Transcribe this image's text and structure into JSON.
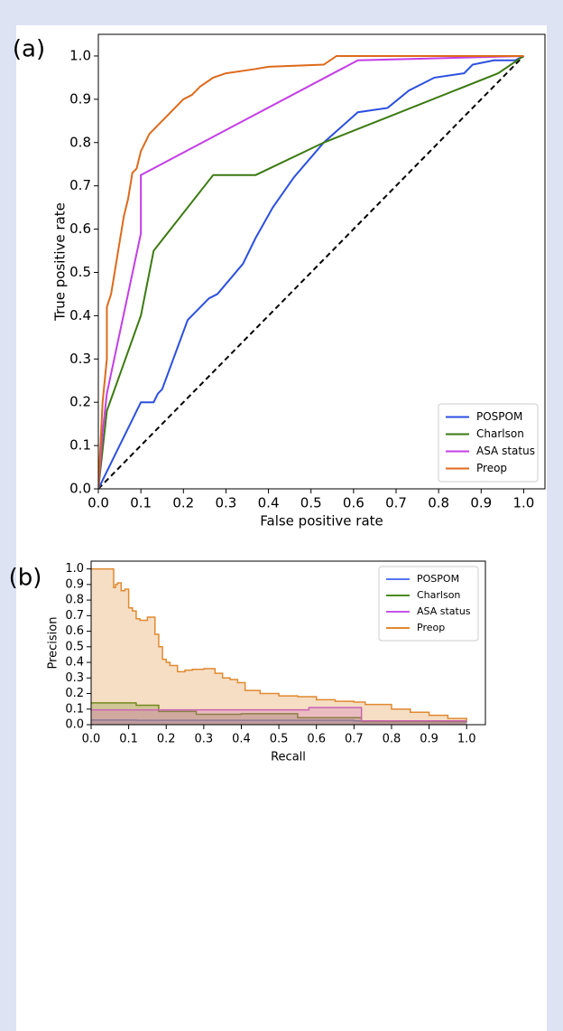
{
  "chart_data": [
    {
      "type": "line",
      "panel_label": "(a)",
      "x_label": "False positive rate",
      "y_label": "True positive rate",
      "xlim": [
        0,
        1.05
      ],
      "ylim": [
        0,
        1.05
      ],
      "xticks": [
        {
          "value": 0,
          "label": "0.0"
        },
        {
          "value": 0.1,
          "label": "0.1"
        },
        {
          "value": 0.2,
          "label": "0.2"
        },
        {
          "value": 0.3,
          "label": "0.3"
        },
        {
          "value": 0.4,
          "label": "0.4"
        },
        {
          "value": 0.5,
          "label": "0.5"
        },
        {
          "value": 0.6,
          "label": "0.6"
        },
        {
          "value": 0.7,
          "label": "0.7"
        },
        {
          "value": 0.8,
          "label": "0.8"
        },
        {
          "value": 0.9,
          "label": "0.9"
        },
        {
          "value": 1,
          "label": "1.0"
        }
      ],
      "yticks": [
        {
          "value": 0,
          "label": "0.0"
        },
        {
          "value": 0.1,
          "label": "0.1"
        },
        {
          "value": 0.2,
          "label": "0.2"
        },
        {
          "value": 0.3,
          "label": "0.3"
        },
        {
          "value": 0.4,
          "label": "0.4"
        },
        {
          "value": 0.5,
          "label": "0.5"
        },
        {
          "value": 0.6,
          "label": "0.6"
        },
        {
          "value": 0.7,
          "label": "0.7"
        },
        {
          "value": 0.8,
          "label": "0.8"
        },
        {
          "value": 0.9,
          "label": "0.9"
        },
        {
          "value": 1,
          "label": "1.0"
        }
      ],
      "legend": "lower right",
      "diagonal": {
        "x": [
          0,
          1
        ],
        "values": [
          0,
          1
        ],
        "color": "#000000",
        "style": "dashed"
      },
      "series": [
        {
          "name": "POSPOM",
          "color": "#2b4fe0",
          "x": [
            0,
            0.1,
            0.13,
            0.14,
            0.15,
            0.21,
            0.26,
            0.28,
            0.34,
            0.37,
            0.41,
            0.46,
            0.53,
            0.61,
            0.68,
            0.73,
            0.79,
            0.86,
            0.88,
            0.93,
            0.98,
            1
          ],
          "values": [
            0,
            0.2,
            0.2,
            0.22,
            0.23,
            0.39,
            0.44,
            0.45,
            0.52,
            0.58,
            0.65,
            0.72,
            0.8,
            0.87,
            0.88,
            0.92,
            0.95,
            0.96,
            0.98,
            0.99,
            0.99,
            1
          ]
        },
        {
          "name": "Charlson",
          "color": "#3c7a12",
          "x": [
            0,
            0.02,
            0.1,
            0.13,
            0.27,
            0.37,
            0.53,
            0.94,
            1
          ],
          "values": [
            0,
            0.18,
            0.4,
            0.55,
            0.725,
            0.725,
            0.8,
            0.96,
            1
          ]
        },
        {
          "name": "ASA status",
          "color": "#c43ee6",
          "x": [
            0,
            0.01,
            0.02,
            0.1,
            0.1,
            0.61,
            1
          ],
          "values": [
            0,
            0.13,
            0.22,
            0.59,
            0.725,
            0.99,
            1
          ]
        },
        {
          "name": "Preop",
          "color": "#dd6a1c",
          "x": [
            0,
            0.01,
            0.02,
            0.02,
            0.03,
            0.04,
            0.05,
            0.06,
            0.07,
            0.08,
            0.09,
            0.1,
            0.12,
            0.14,
            0.16,
            0.18,
            0.2,
            0.22,
            0.24,
            0.27,
            0.3,
            0.37,
            0.4,
            0.53,
            0.56,
            1
          ],
          "values": [
            0,
            0.2,
            0.3,
            0.42,
            0.45,
            0.51,
            0.57,
            0.63,
            0.67,
            0.73,
            0.74,
            0.78,
            0.82,
            0.84,
            0.86,
            0.88,
            0.9,
            0.91,
            0.93,
            0.95,
            0.96,
            0.97,
            0.975,
            0.98,
            1,
            1
          ]
        }
      ]
    },
    {
      "type": "step",
      "panel_label": "(b)",
      "x_label": "Recall",
      "y_label": "Precision",
      "xlim": [
        0,
        1.05
      ],
      "ylim": [
        0,
        1.05
      ],
      "xticks": [
        {
          "value": 0,
          "label": "0.0"
        },
        {
          "value": 0.1,
          "label": "0.1"
        },
        {
          "value": 0.2,
          "label": "0.2"
        },
        {
          "value": 0.3,
          "label": "0.3"
        },
        {
          "value": 0.4,
          "label": "0.4"
        },
        {
          "value": 0.5,
          "label": "0.5"
        },
        {
          "value": 0.6,
          "label": "0.6"
        },
        {
          "value": 0.7,
          "label": "0.7"
        },
        {
          "value": 0.8,
          "label": "0.8"
        },
        {
          "value": 0.9,
          "label": "0.9"
        },
        {
          "value": 1,
          "label": "1.0"
        }
      ],
      "yticks": [
        {
          "value": 0,
          "label": "0.0"
        },
        {
          "value": 0.1,
          "label": "0.1"
        },
        {
          "value": 0.2,
          "label": "0.2"
        },
        {
          "value": 0.3,
          "label": "0.3"
        },
        {
          "value": 0.4,
          "label": "0.4"
        },
        {
          "value": 0.5,
          "label": "0.5"
        },
        {
          "value": 0.6,
          "label": "0.6"
        },
        {
          "value": 0.7,
          "label": "0.7"
        },
        {
          "value": 0.8,
          "label": "0.8"
        },
        {
          "value": 0.9,
          "label": "0.9"
        },
        {
          "value": 1,
          "label": "1.0"
        }
      ],
      "legend": "upper right",
      "series": [
        {
          "name": "POSPOM",
          "color": "#5577ee",
          "x": [
            0,
            0.12,
            0.7,
            0.95,
            1
          ],
          "values": [
            0.03,
            0.028,
            0.025,
            0.02,
            0.015
          ]
        },
        {
          "name": "Charlson",
          "color": "#4a8a1a",
          "x": [
            0,
            0.12,
            0.18,
            0.28,
            0.4,
            0.55,
            0.72,
            1
          ],
          "values": [
            0.14,
            0.125,
            0.085,
            0.067,
            0.07,
            0.045,
            0.02,
            0.02
          ]
        },
        {
          "name": "ASA status",
          "color": "#c455e8",
          "x": [
            0,
            0.58,
            0.72,
            1
          ],
          "values": [
            0.095,
            0.11,
            0.025,
            0.025
          ]
        },
        {
          "name": "Preop",
          "color": "#e08a30",
          "x": [
            0,
            0.06,
            0.065,
            0.07,
            0.08,
            0.09,
            0.1,
            0.11,
            0.12,
            0.13,
            0.15,
            0.17,
            0.18,
            0.19,
            0.2,
            0.21,
            0.23,
            0.25,
            0.27,
            0.3,
            0.33,
            0.35,
            0.37,
            0.39,
            0.41,
            0.45,
            0.5,
            0.55,
            0.6,
            0.65,
            0.7,
            0.73,
            0.8,
            0.85,
            0.9,
            0.95,
            1
          ],
          "values": [
            1,
            0.88,
            0.9,
            0.91,
            0.86,
            0.87,
            0.75,
            0.73,
            0.68,
            0.67,
            0.69,
            0.58,
            0.5,
            0.42,
            0.4,
            0.38,
            0.34,
            0.35,
            0.355,
            0.36,
            0.33,
            0.3,
            0.29,
            0.27,
            0.22,
            0.2,
            0.185,
            0.18,
            0.16,
            0.15,
            0.145,
            0.13,
            0.1,
            0.08,
            0.06,
            0.04,
            0.025
          ]
        }
      ]
    }
  ]
}
